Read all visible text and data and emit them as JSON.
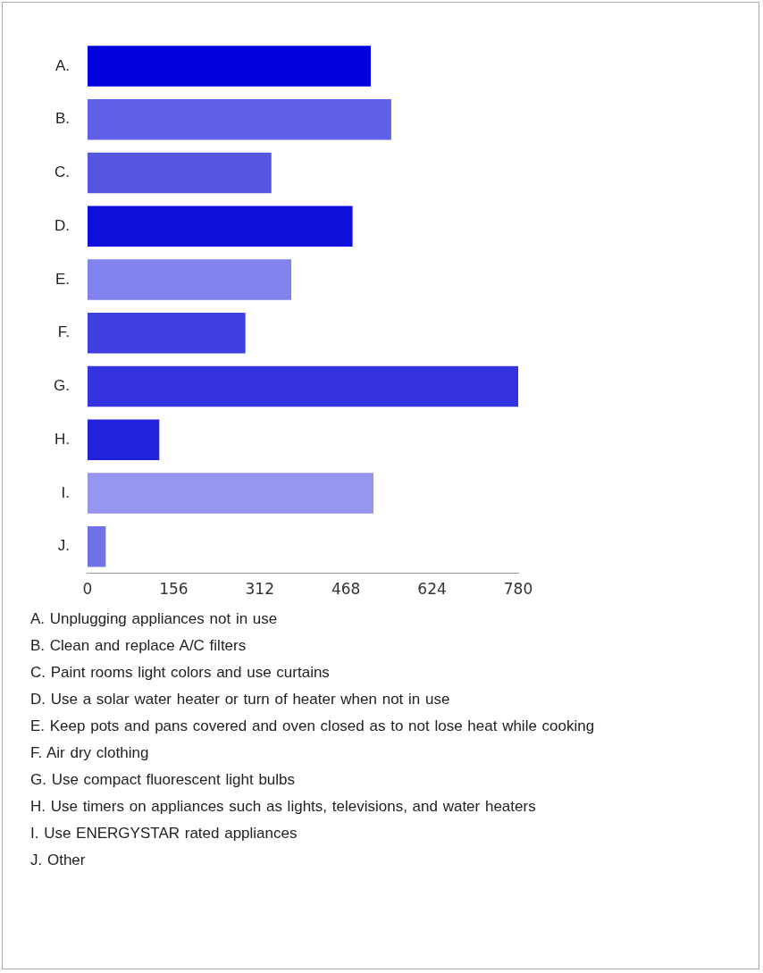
{
  "chart_data": {
    "type": "bar",
    "orientation": "horizontal",
    "categories": [
      "A.",
      "B.",
      "C.",
      "D.",
      "E.",
      "F.",
      "G.",
      "H.",
      "I.",
      "J."
    ],
    "values": [
      513,
      550,
      333,
      480,
      369,
      286,
      780,
      130,
      518,
      33
    ],
    "colors": [
      "#0000dd",
      "#6060e8",
      "#5555e0",
      "#1010dd",
      "#8282ec",
      "#4040e0",
      "#3333e0",
      "#2222dd",
      "#9595f0",
      "#7070e8"
    ],
    "xlim": [
      0,
      780
    ],
    "xticks": [
      0,
      156,
      312,
      468,
      624,
      780
    ],
    "grid": false,
    "legend": false,
    "annotations": [
      "A. Unplugging appliances not in use",
      "B. Clean and replace A/C filters",
      "C. Paint rooms light colors and use curtains",
      "D. Use a solar water heater or turn of heater when not in use",
      "E. Keep pots and pans covered and oven closed as to not lose heat while cooking",
      "F. Air dry clothing",
      "G. Use compact fluorescent light bulbs",
      "H. Use timers on appliances such as lights, televisions, and water heaters",
      "I. Use ENERGYSTAR rated appliances",
      "J. Other"
    ]
  }
}
